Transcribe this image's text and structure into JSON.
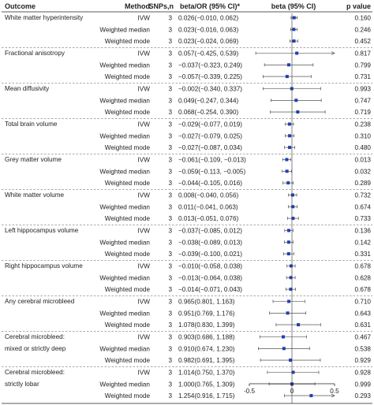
{
  "chart_data": {
    "type": "forest",
    "columns": [
      "Outcome",
      "Method",
      "SNPs,n",
      "beta/OR (95% CI)*",
      "beta (95% CI)",
      "p value"
    ],
    "xaxis": {
      "range": [
        -0.5,
        0.5
      ],
      "ticks": [
        "-0.5",
        "0",
        "0.5"
      ],
      "reference_line": 0
    },
    "groups": [
      {
        "outcome": [
          "White matter hyperintensity"
        ],
        "rows": [
          {
            "method": "IVW",
            "snps": "3",
            "estimate": "0.026(−0.010, 0.062)",
            "beta": 0.026,
            "lower": -0.01,
            "upper": 0.062,
            "p": "0.160"
          },
          {
            "method": "Weighted median",
            "snps": "3",
            "estimate": "0.023(−0.016, 0.063)",
            "beta": 0.023,
            "lower": -0.016,
            "upper": 0.063,
            "p": "0.246"
          },
          {
            "method": "Weighted mode",
            "snps": "3",
            "estimate": "0.023(−0.024, 0.069)",
            "beta": 0.023,
            "lower": -0.024,
            "upper": 0.069,
            "p": "0.452"
          }
        ]
      },
      {
        "outcome": [
          "Fractional anisotropy"
        ],
        "rows": [
          {
            "method": "IVW",
            "snps": "3",
            "estimate": "0.057(−0.425, 0.539)",
            "beta": 0.057,
            "lower": -0.425,
            "upper": 0.539,
            "p": "0.817"
          },
          {
            "method": "Weighted median",
            "snps": "3",
            "estimate": "−0.037(−0.323, 0.249)",
            "beta": -0.037,
            "lower": -0.323,
            "upper": 0.249,
            "p": "0.799"
          },
          {
            "method": "Weighted mode",
            "snps": "3",
            "estimate": "−0.057(−0.339, 0.225)",
            "beta": -0.057,
            "lower": -0.339,
            "upper": 0.225,
            "p": "0.731"
          }
        ]
      },
      {
        "outcome": [
          "Mean diffusivity"
        ],
        "rows": [
          {
            "method": "IVW",
            "snps": "3",
            "estimate": "−0.002(−0.340, 0.337)",
            "beta": -0.002,
            "lower": -0.34,
            "upper": 0.337,
            "p": "0.993"
          },
          {
            "method": "Weighted median",
            "snps": "3",
            "estimate": "0.049(−0.247, 0.344)",
            "beta": 0.049,
            "lower": -0.247,
            "upper": 0.344,
            "p": "0.747"
          },
          {
            "method": "Weighted mode",
            "snps": "3",
            "estimate": "0.068(−0.254, 0.390)",
            "beta": 0.068,
            "lower": -0.254,
            "upper": 0.39,
            "p": "0.719"
          }
        ]
      },
      {
        "outcome": [
          "Total brain volume"
        ],
        "rows": [
          {
            "method": "IVW",
            "snps": "3",
            "estimate": "−0.029(−0.077, 0.019)",
            "beta": -0.029,
            "lower": -0.077,
            "upper": 0.019,
            "p": "0.238"
          },
          {
            "method": "Weighted median",
            "snps": "3",
            "estimate": "−0.027(−0.079, 0.025)",
            "beta": -0.027,
            "lower": -0.079,
            "upper": 0.025,
            "p": "0.310"
          },
          {
            "method": "Weighted mode",
            "snps": "3",
            "estimate": "−0.027(−0.087, 0.034)",
            "beta": -0.027,
            "lower": -0.087,
            "upper": 0.034,
            "p": "0.480"
          }
        ]
      },
      {
        "outcome": [
          "Grey matter volume"
        ],
        "rows": [
          {
            "method": "IVW",
            "snps": "3",
            "estimate": "−0.061(−0.109, −0.013)",
            "beta": -0.061,
            "lower": -0.109,
            "upper": -0.013,
            "p": "0.013"
          },
          {
            "method": "Weighted median",
            "snps": "3",
            "estimate": "−0.059(−0.113, −0.005)",
            "beta": -0.059,
            "lower": -0.113,
            "upper": -0.005,
            "p": "0.032"
          },
          {
            "method": "Weighted mode",
            "snps": "3",
            "estimate": "−0.044(−0.105, 0.016)",
            "beta": -0.044,
            "lower": -0.105,
            "upper": 0.016,
            "p": "0.289"
          }
        ]
      },
      {
        "outcome": [
          "White matter volume"
        ],
        "rows": [
          {
            "method": "IVW",
            "snps": "3",
            "estimate": "0.008(−0.040, 0.056)",
            "beta": 0.008,
            "lower": -0.04,
            "upper": 0.056,
            "p": "0.732"
          },
          {
            "method": "Weighted median",
            "snps": "3",
            "estimate": "0.011(−0.041, 0.063)",
            "beta": 0.011,
            "lower": -0.041,
            "upper": 0.063,
            "p": "0.674"
          },
          {
            "method": "Weighted mode",
            "snps": "3",
            "estimate": "0.013(−0.051, 0.076)",
            "beta": 0.013,
            "lower": -0.051,
            "upper": 0.076,
            "p": "0.733"
          }
        ]
      },
      {
        "outcome": [
          "Left hippocampus volume"
        ],
        "rows": [
          {
            "method": "IVW",
            "snps": "3",
            "estimate": "−0.037(−0.085, 0.012)",
            "beta": -0.037,
            "lower": -0.085,
            "upper": 0.012,
            "p": "0.136"
          },
          {
            "method": "Weighted median",
            "snps": "3",
            "estimate": "−0.038(−0.089, 0.013)",
            "beta": -0.038,
            "lower": -0.089,
            "upper": 0.013,
            "p": "0.142"
          },
          {
            "method": "Weighted mode",
            "snps": "3",
            "estimate": "−0.039(−0.100, 0.021)",
            "beta": -0.039,
            "lower": -0.1,
            "upper": 0.021,
            "p": "0.331"
          }
        ]
      },
      {
        "outcome": [
          "Right hippocampus volume"
        ],
        "rows": [
          {
            "method": "IVW",
            "snps": "3",
            "estimate": "−0.010(−0.058, 0.038)",
            "beta": -0.01,
            "lower": -0.058,
            "upper": 0.038,
            "p": "0.678"
          },
          {
            "method": "Weighted median",
            "snps": "3",
            "estimate": "−0.013(−0.064, 0.038)",
            "beta": -0.013,
            "lower": -0.064,
            "upper": 0.038,
            "p": "0.628"
          },
          {
            "method": "Weighted mode",
            "snps": "3",
            "estimate": "−0.014(−0.071, 0.043)",
            "beta": -0.014,
            "lower": -0.071,
            "upper": 0.043,
            "p": "0.678"
          }
        ]
      },
      {
        "outcome": [
          "Any cerebral microbleed"
        ],
        "rows": [
          {
            "method": "IVW",
            "snps": "3",
            "estimate": "0.965(0.801, 1.163)",
            "beta": -0.036,
            "lower": -0.222,
            "upper": 0.151,
            "p": "0.710"
          },
          {
            "method": "Weighted median",
            "snps": "3",
            "estimate": "0.951(0.769, 1.176)",
            "beta": -0.05,
            "lower": -0.263,
            "upper": 0.162,
            "p": "0.643"
          },
          {
            "method": "Weighted mode",
            "snps": "3",
            "estimate": "1.078(0.830, 1.399)",
            "beta": 0.075,
            "lower": -0.186,
            "upper": 0.336,
            "p": "0.631"
          }
        ]
      },
      {
        "outcome": [
          "Cerebral microbleed:",
          "mixed or strictly deep"
        ],
        "rows": [
          {
            "method": "IVW",
            "snps": "3",
            "estimate": "0.903(0.686, 1.188)",
            "beta": -0.102,
            "lower": -0.377,
            "upper": 0.172,
            "p": "0.467"
          },
          {
            "method": "Weighted median",
            "snps": "3",
            "estimate": "0.910(0.674, 1.230)",
            "beta": -0.094,
            "lower": -0.395,
            "upper": 0.207,
            "p": "0.538"
          },
          {
            "method": "Weighted mode",
            "snps": "3",
            "estimate": "0.982(0.691, 1.395)",
            "beta": -0.018,
            "lower": -0.37,
            "upper": 0.333,
            "p": "0.929"
          }
        ]
      },
      {
        "outcome": [
          "Cerebral microbleed:",
          "strictly lobar"
        ],
        "rows": [
          {
            "method": "IVW",
            "snps": "3",
            "estimate": "1.014(0.750, 1.370)",
            "beta": 0.014,
            "lower": -0.288,
            "upper": 0.315,
            "p": "0.928"
          },
          {
            "method": "Weighted median",
            "snps": "3",
            "estimate": "1.000(0.765, 1.309)",
            "beta": 0.0,
            "lower": -0.268,
            "upper": 0.269,
            "p": "0.999"
          },
          {
            "method": "Weighted mode",
            "snps": "3",
            "estimate": "1.254(0.916, 1.715)",
            "beta": 0.226,
            "lower": -0.088,
            "upper": 0.54,
            "p": "0.293"
          }
        ]
      }
    ]
  }
}
